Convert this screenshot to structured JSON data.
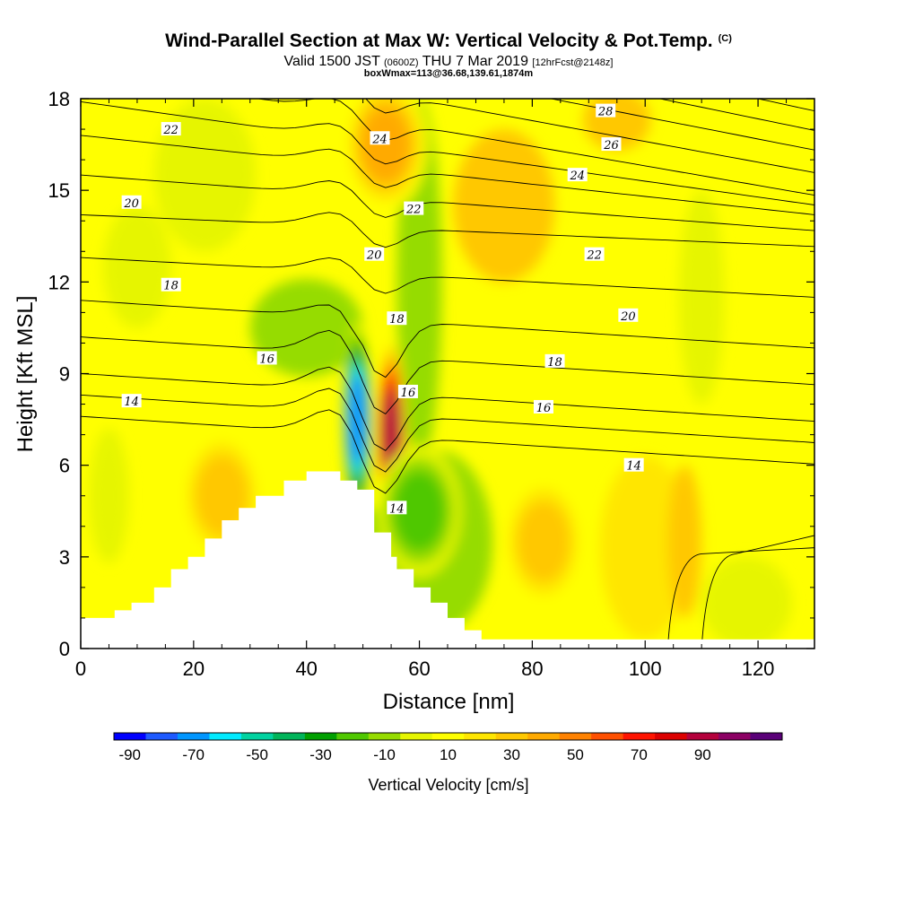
{
  "header": {
    "title": "Wind-Parallel Section at Max W: Vertical Velocity & Pot.Temp.",
    "title_mark": "(C)",
    "valid_prefix": "Valid 1500 JST",
    "valid_utc": "(0600Z)",
    "valid_date": "THU 7 Mar 2019",
    "forecast_info": "[12hrFcst@2148z]",
    "box_info": "boxWmax=113@36.68,139.61,1874m"
  },
  "chart_data": {
    "type": "heatmap",
    "xlabel": "Distance [nm]",
    "ylabel": "Height [Kft MSL]",
    "xlim": [
      0,
      130
    ],
    "ylim": [
      0,
      18
    ],
    "x_ticks": [
      0,
      20,
      40,
      60,
      80,
      100,
      120
    ],
    "y_ticks": [
      0,
      3,
      6,
      9,
      12,
      15,
      18
    ],
    "colorbar": {
      "label": "Vertical Velocity [cm/s]",
      "tick_labels": [
        "-90",
        "-70",
        "-50",
        "-30",
        "-10",
        "10",
        "30",
        "50",
        "70",
        "90"
      ],
      "colors": [
        "#0000ff",
        "#1e5aff",
        "#0096ff",
        "#00eaff",
        "#00d2a0",
        "#00b45a",
        "#00a000",
        "#50c800",
        "#96dc00",
        "#e6f500",
        "#ffff00",
        "#ffe600",
        "#ffc800",
        "#ffaa00",
        "#ff8200",
        "#ff5000",
        "#ff1400",
        "#dc0000",
        "#b4003c",
        "#8c0064",
        "#5a0078"
      ]
    },
    "vertical_velocity_features": [
      {
        "x": 49,
        "y": 7.5,
        "w_cm_s": -80
      },
      {
        "x": 55,
        "y": 7.0,
        "w_cm_s": 90
      },
      {
        "x": 54,
        "y": 16.5,
        "w_cm_s": 35
      },
      {
        "x": 82,
        "y": 3.5,
        "w_cm_s": 30
      },
      {
        "x": 60,
        "y": 4.5,
        "w_cm_s": -30
      },
      {
        "x": 25,
        "y": 5.0,
        "w_cm_s": 30
      }
    ],
    "theta_contour_labels": [
      {
        "text": "22",
        "x": 16,
        "y": 17.0
      },
      {
        "text": "24",
        "x": 53,
        "y": 16.7
      },
      {
        "text": "28",
        "x": 93,
        "y": 17.6
      },
      {
        "text": "26",
        "x": 94,
        "y": 16.5
      },
      {
        "text": "24",
        "x": 88,
        "y": 15.5
      },
      {
        "text": "20",
        "x": 9,
        "y": 14.6
      },
      {
        "text": "22",
        "x": 59,
        "y": 14.4
      },
      {
        "text": "20",
        "x": 52,
        "y": 12.9
      },
      {
        "text": "22",
        "x": 91,
        "y": 12.9
      },
      {
        "text": "18",
        "x": 16,
        "y": 11.9
      },
      {
        "text": "18",
        "x": 56,
        "y": 10.8
      },
      {
        "text": "20",
        "x": 97,
        "y": 10.9
      },
      {
        "text": "16",
        "x": 33,
        "y": 9.5
      },
      {
        "text": "18",
        "x": 84,
        "y": 9.4
      },
      {
        "text": "16",
        "x": 58,
        "y": 8.4
      },
      {
        "text": "14",
        "x": 9,
        "y": 8.1
      },
      {
        "text": "16",
        "x": 82,
        "y": 7.9
      },
      {
        "text": "14",
        "x": 98,
        "y": 6.0
      },
      {
        "text": "14",
        "x": 56,
        "y": 4.6
      }
    ],
    "theta_values": [
      14,
      16,
      18,
      20,
      22,
      24,
      26,
      28
    ],
    "terrain": {
      "x": [
        0,
        6,
        6,
        9,
        9,
        13,
        13,
        16,
        16,
        19,
        19,
        22,
        22,
        25,
        25,
        28,
        28,
        31,
        31,
        36,
        36,
        40,
        40,
        46,
        46,
        49,
        49,
        52,
        52,
        55,
        55,
        56,
        56,
        59,
        59,
        62,
        62,
        65,
        65,
        68,
        68,
        71,
        71,
        130
      ],
      "y": [
        1.0,
        1.0,
        1.25,
        1.25,
        1.5,
        1.5,
        2.0,
        2.0,
        2.6,
        2.6,
        3.0,
        3.0,
        3.6,
        3.6,
        4.2,
        4.2,
        4.6,
        4.6,
        5.0,
        5.0,
        5.5,
        5.5,
        5.8,
        5.8,
        5.5,
        5.5,
        5.2,
        5.2,
        3.8,
        3.8,
        3.0,
        3.0,
        2.6,
        2.6,
        2.0,
        2.0,
        1.5,
        1.5,
        1.0,
        1.0,
        0.6,
        0.6,
        0.3,
        0.3
      ]
    }
  }
}
